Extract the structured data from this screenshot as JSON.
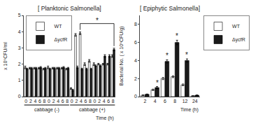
{
  "chart_data": [
    {
      "type": "bar",
      "title": "[ Planktonic Salmonella]",
      "ylabel": "x 10⁶CFU/ml",
      "categories": [
        "0",
        "2",
        "4",
        "6",
        "8",
        "0",
        "2",
        "4",
        "6",
        "8",
        "0",
        "2",
        "4",
        "6",
        "8",
        "0",
        "2",
        "4",
        "6",
        "8"
      ],
      "series": [
        {
          "name": "WT",
          "color": "#ffffff",
          "values": [
            1.8,
            1.75,
            1.75,
            1.75,
            1.7,
            1.8,
            1.75,
            1.75,
            1.75,
            1.7,
            0.5,
            3.8,
            3.9,
            2.0,
            2.2,
            2.0,
            2.0,
            2.0,
            2.0,
            2.5
          ],
          "errors": [
            0.08,
            0.05,
            0.05,
            0.05,
            0.05,
            0.08,
            0.05,
            0.05,
            0.05,
            0.05,
            0.05,
            0.08,
            0.08,
            0.08,
            0.08,
            0.08,
            0.05,
            0.05,
            0.05,
            0.08
          ]
        },
        {
          "name": "ΔycfR",
          "color": "#1a1a1a",
          "values": [
            1.7,
            1.75,
            1.75,
            1.8,
            1.75,
            1.7,
            1.75,
            1.75,
            1.8,
            1.75,
            0.4,
            1.8,
            1.7,
            1.7,
            1.7,
            1.9,
            1.9,
            2.5,
            2.5,
            2.9
          ],
          "errors": [
            0.05,
            0.05,
            0.05,
            0.05,
            0.05,
            0.05,
            0.05,
            0.05,
            0.05,
            0.05,
            0.05,
            0.08,
            0.05,
            0.05,
            0.05,
            0.05,
            0.05,
            0.08,
            0.08,
            0.08
          ]
        }
      ],
      "ylim": [
        0,
        5
      ],
      "yticks": [
        0,
        1,
        2,
        3,
        4,
        5
      ],
      "grid": false,
      "legend": "upper left",
      "annotations": [
        {
          "text": "cabbage (-)"
        },
        {
          "text": "cabbage (+)"
        },
        {
          "text": "Time (h)"
        },
        {
          "text": "*"
        }
      ]
    },
    {
      "type": "bar",
      "title": "[ Epiphytic Salmonella]",
      "ylabel": "Bacterial No. ( x 10⁶CFU/g)",
      "categories": [
        "2",
        "4",
        "6",
        "8",
        "12",
        "24"
      ],
      "series": [
        {
          "name": "WT",
          "color": "#ffffff",
          "values": [
            0.15,
            0.75,
            2.0,
            2.2,
            1.3,
            0.08
          ],
          "errors": [
            0.04,
            0.08,
            0.12,
            0.1,
            0.1,
            0.03
          ]
        },
        {
          "name": "ΔycfR",
          "color": "#1a1a1a",
          "values": [
            0.25,
            1.0,
            3.9,
            6.0,
            4.0,
            0.15
          ],
          "errors": [
            0.04,
            0.12,
            0.18,
            0.25,
            0.18,
            0.04
          ]
        }
      ],
      "ylim": [
        0,
        9
      ],
      "yticks": [
        0,
        2,
        4,
        6,
        8
      ],
      "grid": false,
      "legend": "upper right",
      "annotations": [
        {
          "text": "Time (h)"
        },
        {
          "text": "*",
          "x": "4"
        },
        {
          "text": "*",
          "x": "6"
        },
        {
          "text": "*",
          "x": "8"
        },
        {
          "text": "*",
          "x": "12"
        }
      ]
    }
  ]
}
